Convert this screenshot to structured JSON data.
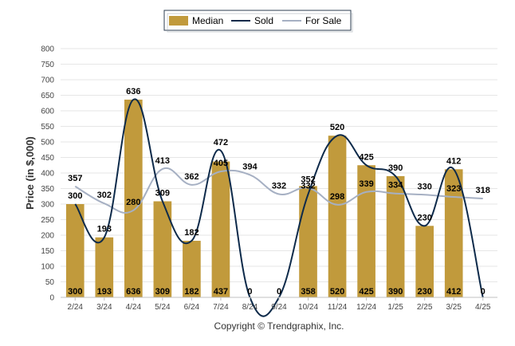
{
  "chart_data": {
    "type": "bar",
    "categories": [
      "2/24",
      "3/24",
      "4/24",
      "5/24",
      "6/24",
      "7/24",
      "8/24",
      "9/24",
      "10/24",
      "11/24",
      "12/24",
      "1/25",
      "2/25",
      "3/25",
      "4/25"
    ],
    "series": [
      {
        "name": "Median",
        "kind": "bar",
        "color": "#c19a3c",
        "values": [
          300,
          193,
          636,
          309,
          182,
          437,
          0,
          0,
          358,
          520,
          425,
          390,
          230,
          412,
          0
        ],
        "labels": [
          "300",
          "193",
          "636",
          "309",
          "182",
          "437",
          "0",
          "0",
          "358",
          "520",
          "425",
          "390",
          "230",
          "412",
          "0"
        ]
      },
      {
        "name": "Sold",
        "kind": "line",
        "color": "#0d2a4a",
        "values": [
          300,
          193,
          636,
          309,
          182,
          472,
          0,
          0,
          332,
          520,
          425,
          390,
          230,
          412,
          0
        ],
        "labels": [
          "300",
          "193",
          "636",
          "309",
          "182",
          "472",
          "0",
          "0",
          "332",
          "520",
          "425",
          "390",
          "230",
          "412",
          "0"
        ]
      },
      {
        "name": "For Sale",
        "kind": "line",
        "color": "#a6b0c3",
        "values": [
          357,
          302,
          280,
          413,
          362,
          405,
          394,
          332,
          352,
          298,
          339,
          334,
          330,
          323,
          318
        ],
        "labels": [
          "357",
          "302",
          "280",
          "413",
          "362",
          "405",
          "394",
          "332",
          "352",
          "298",
          "339",
          "334",
          "330",
          "323",
          "318"
        ]
      }
    ],
    "ylabel": "Price (in $,000)",
    "xlabel": "",
    "ylim": [
      0,
      800
    ],
    "yticks": [
      "0",
      "50",
      "100",
      "150",
      "200",
      "250",
      "300",
      "350",
      "400",
      "450",
      "500",
      "550",
      "600",
      "650",
      "700",
      "750",
      "800"
    ],
    "grid": true,
    "legend": "top-center"
  },
  "footer": {
    "copyright": "Copyright © Trendgraphix, Inc."
  }
}
